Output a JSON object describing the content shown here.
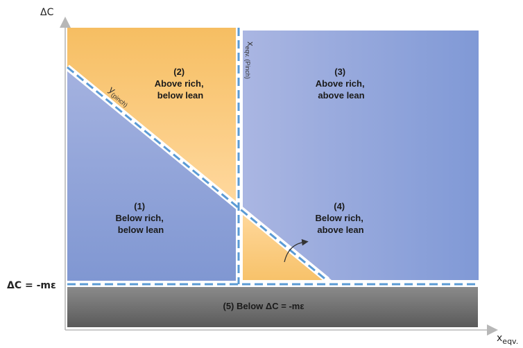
{
  "axes": {
    "y_label": "ΔC",
    "x_label": "x",
    "x_label_sub": "eqv.",
    "baseline_label": "ΔC = -mε"
  },
  "boundaries": {
    "pinch_line_main": "y",
    "pinch_line_sub": "(pinch)",
    "vertical_line_main": "x",
    "vertical_line_sub": "eqv. (Pinch)"
  },
  "regions": [
    {
      "id": "1",
      "lines": [
        "(1)",
        "Below rich,",
        "below lean"
      ]
    },
    {
      "id": "2",
      "lines": [
        "(2)",
        "Above rich,",
        "below lean"
      ]
    },
    {
      "id": "3",
      "lines": [
        "(3)",
        "Above rich,",
        "above lean"
      ]
    },
    {
      "id": "4",
      "lines": [
        "(4)",
        "Below rich,",
        "above lean"
      ]
    },
    {
      "id": "5",
      "lines": [
        "(5) Below ΔC = -mε"
      ]
    }
  ],
  "colors": {
    "blue_region": "#93a5d8",
    "orange_region": "#fbcf86",
    "gray_region": "#6e6e6e",
    "dashed_line": "#5b9bd5"
  }
}
